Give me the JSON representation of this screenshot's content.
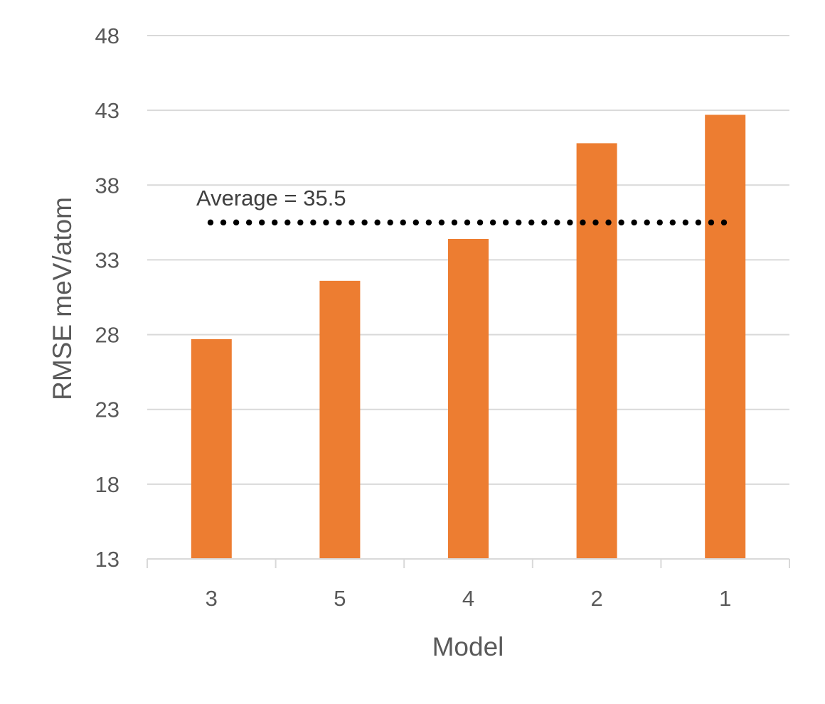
{
  "chart_data": {
    "type": "bar",
    "title": "",
    "categories": [
      "3",
      "5",
      "4",
      "2",
      "1"
    ],
    "values": [
      27.7,
      31.6,
      34.4,
      40.8,
      42.7
    ],
    "xlabel": "Model",
    "ylabel": "RMSE meV/atom",
    "ylim": [
      13,
      48
    ],
    "yticks": [
      13,
      18,
      23,
      28,
      33,
      38,
      43,
      48
    ],
    "grid": true,
    "legend": "none",
    "bar_color": "#ED7D31",
    "gridline_color": "#D9D9D9",
    "reference_line": {
      "value": 35.5,
      "label": "Average = 35.5",
      "style": "dotted",
      "color": "#000000"
    }
  }
}
